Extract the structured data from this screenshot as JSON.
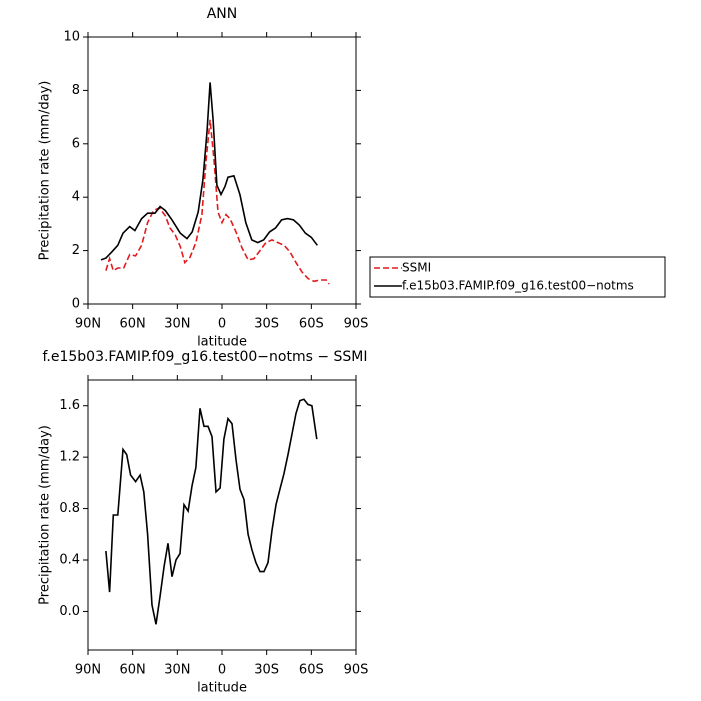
{
  "chart_data": [
    {
      "type": "line",
      "title": "ANN",
      "xlabel": "latitude",
      "ylabel": "Precipitation rate (mm/day)",
      "xlim": [
        90,
        -90
      ],
      "xticks": [
        {
          "value": 90,
          "label": "90N"
        },
        {
          "value": 60,
          "label": "60N"
        },
        {
          "value": 30,
          "label": "30N"
        },
        0,
        {
          "value": -30,
          "label": "30S"
        },
        {
          "value": -60,
          "label": "60S"
        },
        {
          "value": -90,
          "label": "90S"
        }
      ],
      "ylim": [
        0,
        10
      ],
      "yticks": [
        0,
        2,
        4,
        6,
        8,
        10
      ],
      "legend": "right",
      "series": [
        {
          "name": "SSMI",
          "color": "#e41a1c",
          "dashed": true,
          "x": [
            78,
            75.5,
            73,
            70,
            66,
            62,
            58,
            54,
            50,
            46,
            42,
            38,
            35,
            31.5,
            28,
            25,
            21.5,
            17.5,
            13.5,
            10.7,
            8,
            5.4,
            2.7,
            0,
            -2.7,
            -5.4,
            -9.4,
            -13.4,
            -17.5,
            -21.5,
            -25.5,
            -29.5,
            -33.6,
            -37.6,
            -41.7,
            -45.7,
            -49.7,
            -53.7,
            -57.8,
            -61.8,
            -65.8,
            -70,
            -72
          ],
          "values": [
            1.25,
            1.7,
            1.25,
            1.35,
            1.35,
            1.85,
            1.8,
            2.2,
            3.05,
            3.5,
            3.6,
            3.3,
            2.85,
            2.6,
            2.15,
            1.55,
            1.75,
            2.3,
            3.35,
            5.4,
            6.9,
            5.4,
            3.45,
            3.05,
            3.35,
            3.2,
            2.7,
            2.1,
            1.65,
            1.7,
            2.0,
            2.3,
            2.4,
            2.3,
            2.2,
            1.95,
            1.55,
            1.2,
            0.95,
            0.85,
            0.9,
            0.9,
            0.75
          ]
        },
        {
          "name": "f.e15b03.FAMIP.f09_g16.test00−notms",
          "color": "#000000",
          "dashed": false,
          "x": [
            81.3,
            78,
            74,
            70,
            66.5,
            62,
            58.5,
            54,
            50,
            45,
            41.6,
            38,
            33.6,
            28,
            23.5,
            20,
            16,
            12.8,
            10,
            8,
            6,
            3.4,
            0.7,
            -2,
            -4,
            -8,
            -12,
            -16,
            -20,
            -24,
            -28,
            -32,
            -36,
            -40,
            -44,
            -48,
            -52,
            -56,
            -60,
            -64
          ],
          "values": [
            1.65,
            1.72,
            1.95,
            2.2,
            2.65,
            2.9,
            2.75,
            3.2,
            3.4,
            3.4,
            3.65,
            3.5,
            3.15,
            2.65,
            2.45,
            2.7,
            3.45,
            4.65,
            6.5,
            8.3,
            6.9,
            4.45,
            4.1,
            4.4,
            4.75,
            4.8,
            4.1,
            3.05,
            2.4,
            2.3,
            2.4,
            2.7,
            2.85,
            3.15,
            3.2,
            3.15,
            2.95,
            2.65,
            2.5,
            2.2
          ]
        }
      ]
    },
    {
      "type": "line",
      "title": "f.e15b03.FAMIP.f09_g16.test00−notms − SSMI",
      "xlabel": "latitude",
      "ylabel": "Precipitation rate (mm/day)",
      "xlim": [
        90,
        -90
      ],
      "xticks": [
        {
          "value": 90,
          "label": "90N"
        },
        {
          "value": 60,
          "label": "60N"
        },
        {
          "value": 30,
          "label": "30N"
        },
        0,
        {
          "value": -30,
          "label": "30S"
        },
        {
          "value": -60,
          "label": "60S"
        },
        {
          "value": -90,
          "label": "90S"
        }
      ],
      "ylim": [
        -0.3,
        1.8
      ],
      "yticks": [
        {
          "value": 0,
          "label": "0.0"
        },
        0.4,
        0.8,
        1.2,
        1.6
      ],
      "color": "#000000",
      "x": [
        78,
        75.5,
        73,
        70,
        66.5,
        64,
        61.4,
        58,
        55,
        52.5,
        50,
        47,
        44.3,
        41.6,
        38.9,
        36.3,
        33.6,
        30.9,
        28.2,
        25.5,
        22.8,
        20.1,
        17.5,
        14.8,
        12.1,
        9.4,
        6.7,
        4,
        1.3,
        -1.3,
        -4,
        -6.7,
        -9.4,
        -12.1,
        -14.8,
        -17.5,
        -20.1,
        -22.8,
        -25.5,
        -28.2,
        -30.9,
        -33.6,
        -36.3,
        -38.9,
        -41.6,
        -44.3,
        -47,
        -49.7,
        -52.3,
        -55,
        -57.7,
        -60.4,
        -63.7
      ],
      "values": [
        0.47,
        0.15,
        0.75,
        0.75,
        1.26,
        1.22,
        1.06,
        1.01,
        1.06,
        0.93,
        0.6,
        0.05,
        -0.1,
        0.12,
        0.35,
        0.53,
        0.27,
        0.4,
        0.45,
        0.83,
        0.78,
        0.98,
        1.12,
        1.58,
        1.44,
        1.44,
        1.36,
        0.93,
        0.96,
        1.34,
        1.5,
        1.46,
        1.18,
        0.95,
        0.87,
        0.6,
        0.48,
        0.38,
        0.31,
        0.31,
        0.38,
        0.63,
        0.83,
        0.95,
        1.07,
        1.22,
        1.38,
        1.54,
        1.64,
        1.65,
        1.61,
        1.6,
        1.34
      ]
    }
  ]
}
